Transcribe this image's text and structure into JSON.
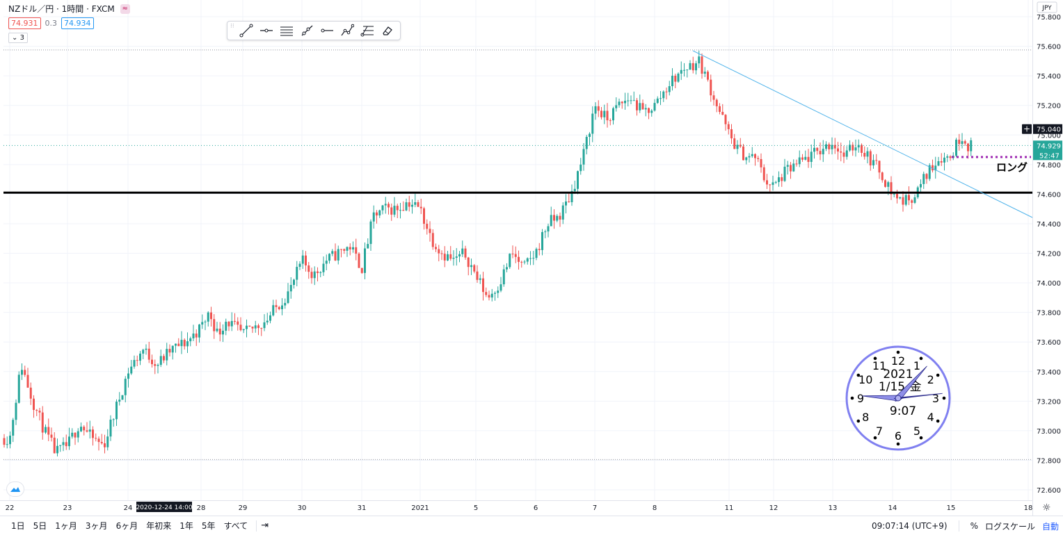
{
  "symbol_title": "NZドル／円 · 1時間 · FXCM",
  "quote": {
    "sell": "74.931",
    "spread": "0.3",
    "buy": "74.934"
  },
  "indicator_toggle": "3",
  "currency": "JPY",
  "price_axis": {
    "ticks": [
      "75.800",
      "75.600",
      "75.400",
      "75.200",
      "75.000",
      "74.800",
      "74.600",
      "74.400",
      "74.200",
      "74.000",
      "73.800",
      "73.600",
      "73.400",
      "73.200",
      "73.000",
      "72.800",
      "72.600"
    ],
    "crosshair_label": "75.040",
    "last_price_label": "74.929",
    "countdown_label": "52:47"
  },
  "time_axis": {
    "labels": [
      "22",
      "23",
      "24",
      "28",
      "29",
      "30",
      "31",
      "2021",
      "5",
      "6",
      "7",
      "8",
      "11",
      "12",
      "13",
      "14",
      "15",
      "18"
    ],
    "highlight_label": "2020-12-24  14:00"
  },
  "annotation_text": "ロング",
  "clock": {
    "numbers": [
      "12",
      "1",
      "2",
      "3",
      "4",
      "5",
      "6",
      "7",
      "8",
      "9",
      "10",
      "11"
    ],
    "year": "2021",
    "date": "1/15",
    "weekday": "金",
    "time": "9:07"
  },
  "drawing_toolbar": [
    "trend-line-icon",
    "horizontal-ray-icon",
    "parallel-channel-icon",
    "ray-icon",
    "horizontal-line-icon",
    "path-icon",
    "fib-icon",
    "eraser-icon"
  ],
  "bottom_bar": {
    "ranges": [
      "1日",
      "5日",
      "1ヶ月",
      "3ヶ月",
      "6ヶ月",
      "年初来",
      "1年",
      "5年",
      "すべて"
    ],
    "time": "09:07:14 (UTC+9)",
    "percent": "%",
    "log_scale": "ログスケール",
    "auto": "自動"
  },
  "colors": {
    "up": "#26a69a",
    "down": "#ef5350",
    "trendline": "#4fb3ea",
    "support": "#000000",
    "long_marker": "#9c27b0",
    "clock_face": "#8080f0"
  },
  "chart_data": {
    "type": "candlestick",
    "symbol": "NZD/JPY",
    "timeframe": "1H",
    "ylim": [
      72.55,
      75.85
    ],
    "support_level": 74.61,
    "last_price": 74.929,
    "close_path": [
      {
        "date": "12-22",
        "values": [
          72.95,
          73.45,
          73.2,
          73.0,
          72.85
        ]
      },
      {
        "date": "12-23",
        "values": [
          72.9,
          73.05,
          72.95,
          72.9,
          73.15
        ]
      },
      {
        "date": "12-24",
        "values": [
          73.4,
          73.55,
          73.45,
          73.55,
          73.6
        ]
      },
      {
        "date": "12-28",
        "values": [
          73.7,
          73.8,
          73.65,
          73.75,
          73.7
        ]
      },
      {
        "date": "12-29",
        "values": [
          73.65,
          73.7,
          73.75,
          73.85,
          73.95
        ]
      },
      {
        "date": "12-30",
        "values": [
          74.15,
          74.05,
          74.15,
          74.2,
          74.25
        ]
      },
      {
        "date": "12-31",
        "values": [
          74.1,
          74.45,
          74.5,
          74.5,
          74.55
        ]
      },
      {
        "date": "2021-01-01",
        "values": [
          74.5,
          74.3,
          74.2,
          74.15,
          74.2
        ]
      },
      {
        "date": "01-05",
        "values": [
          74.05,
          73.9,
          74.0,
          74.2,
          74.1
        ]
      },
      {
        "date": "01-06",
        "values": [
          74.2,
          74.4,
          74.45,
          74.6,
          74.85
        ]
      },
      {
        "date": "01-07",
        "values": [
          75.2,
          75.1,
          75.2,
          75.25,
          75.15
        ]
      },
      {
        "date": "01-08",
        "values": [
          75.2,
          75.35,
          75.45,
          75.5,
          75.25
        ]
      },
      {
        "date": "01-11",
        "values": [
          75.0,
          74.9,
          74.85,
          74.85,
          74.7
        ]
      },
      {
        "date": "01-12",
        "values": [
          74.65,
          74.75,
          74.8,
          74.85,
          74.9
        ]
      },
      {
        "date": "01-13",
        "values": [
          74.95,
          74.85,
          74.95,
          74.85,
          74.75
        ]
      },
      {
        "date": "01-14",
        "values": [
          74.6,
          74.55,
          74.6,
          74.75,
          74.85
        ]
      },
      {
        "date": "01-15",
        "values": [
          74.85,
          74.95,
          75.0,
          74.93
        ]
      }
    ]
  }
}
